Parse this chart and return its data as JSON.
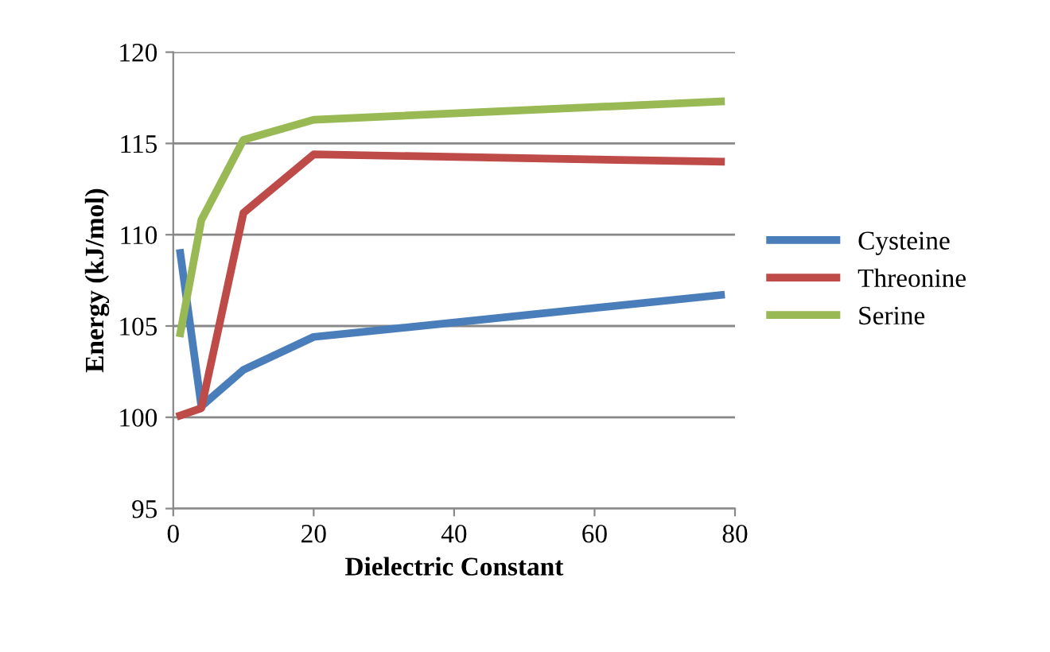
{
  "chart_data": {
    "type": "line",
    "xlabel": "Dielectric Constant",
    "ylabel": "Energy (kJ/mol)",
    "x": [
      1,
      4,
      10,
      20,
      78
    ],
    "series": [
      {
        "name": "Cysteine",
        "color": "#4a7ebb",
        "values": [
          109.0,
          100.6,
          102.6,
          104.4,
          106.7
        ]
      },
      {
        "name": "Threonine",
        "color": "#be4b48",
        "values": [
          100.1,
          100.5,
          111.2,
          114.4,
          114.0
        ]
      },
      {
        "name": "Serine",
        "color": "#98b954",
        "values": [
          104.6,
          110.8,
          115.2,
          116.3,
          117.3
        ]
      }
    ],
    "xlim": [
      0,
      80
    ],
    "xticks": [
      0,
      20,
      40,
      60,
      80
    ],
    "ylim": [
      95,
      120
    ],
    "yticks": [
      95,
      100,
      105,
      110,
      115,
      120
    ],
    "grid": "y",
    "legend": "right",
    "marker": "none",
    "line_style": "solid"
  }
}
